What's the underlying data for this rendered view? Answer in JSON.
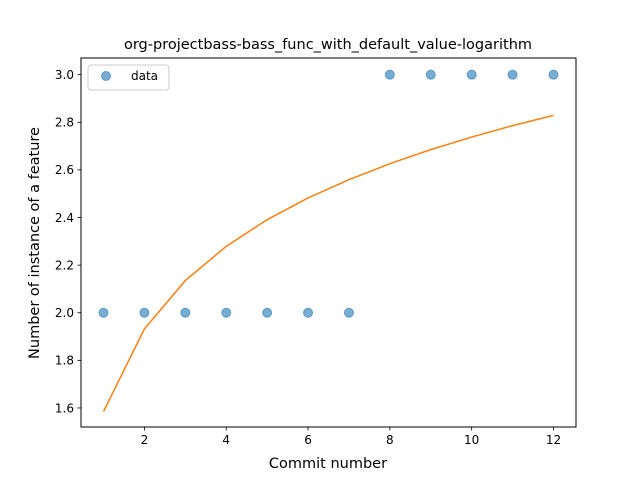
{
  "chart_data": {
    "type": "scatter",
    "title": "org-projectbass-bass_func_with_default_value-logarithm",
    "xlabel": "Commit number",
    "ylabel": "Number of instance of a feature",
    "xlim": [
      0.45,
      12.55
    ],
    "ylim": [
      1.52,
      3.07
    ],
    "xticks": [
      2,
      4,
      6,
      8,
      10,
      12
    ],
    "yticks": [
      1.6,
      1.8,
      2.0,
      2.2,
      2.4,
      2.6,
      2.8,
      3.0
    ],
    "grid": false,
    "legend_position": "top-left",
    "series": [
      {
        "name": "data",
        "kind": "scatter",
        "color": "#1f77b4",
        "x": [
          1,
          2,
          3,
          4,
          5,
          6,
          7,
          8,
          9,
          10,
          11,
          12
        ],
        "y": [
          2.0,
          2.0,
          2.0,
          2.0,
          2.0,
          2.0,
          2.0,
          3.0,
          3.0,
          3.0,
          3.0,
          3.0
        ]
      },
      {
        "kind": "line",
        "color": "#ff7f0e",
        "x": [
          1,
          2,
          3,
          4,
          5,
          6,
          7,
          8,
          9,
          10,
          11,
          12
        ],
        "y": [
          1.585,
          1.932,
          2.135,
          2.279,
          2.391,
          2.482,
          2.559,
          2.626,
          2.685,
          2.738,
          2.786,
          2.829
        ]
      }
    ]
  }
}
